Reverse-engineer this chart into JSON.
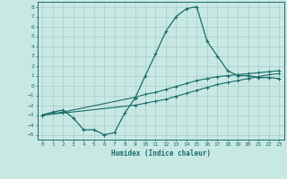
{
  "xlabel": "Humidex (Indice chaleur)",
  "xlim": [
    -0.5,
    23.5
  ],
  "ylim": [
    -5.5,
    8.5
  ],
  "xticks": [
    0,
    1,
    2,
    3,
    4,
    5,
    6,
    7,
    8,
    9,
    10,
    11,
    12,
    13,
    14,
    15,
    16,
    17,
    18,
    19,
    20,
    21,
    22,
    23
  ],
  "yticks": [
    -5,
    -4,
    -3,
    -2,
    -1,
    0,
    1,
    2,
    3,
    4,
    5,
    6,
    7,
    8
  ],
  "bg_color": "#c8e8e4",
  "grid_color": "#a8ccc8",
  "line_color": "#1a6b6b",
  "line1_x": [
    0,
    1,
    2,
    3,
    4,
    5,
    6,
    7,
    8,
    9,
    10,
    11,
    12,
    13,
    14,
    15,
    16,
    17,
    18,
    19,
    20,
    21,
    22,
    23
  ],
  "line1_y": [
    -3,
    -2.7,
    -2.5,
    -3.3,
    -4.5,
    -4.5,
    -5,
    -4.8,
    -2.8,
    -1.3,
    1.0,
    3.2,
    5.5,
    7.0,
    7.8,
    8.0,
    4.5,
    3.0,
    1.5,
    1.0,
    1.0,
    0.8,
    0.8,
    0.7
  ],
  "line2_x": [
    0,
    2,
    9,
    10,
    11,
    12,
    13,
    14,
    15,
    16,
    17,
    18,
    19,
    20,
    21,
    22,
    23
  ],
  "line2_y": [
    -3,
    -2.7,
    -1.2,
    -0.9,
    -0.7,
    -0.4,
    -0.1,
    0.2,
    0.5,
    0.7,
    0.9,
    1.0,
    1.1,
    1.2,
    1.3,
    1.4,
    1.5
  ],
  "line3_x": [
    0,
    2,
    9,
    10,
    11,
    12,
    13,
    14,
    15,
    16,
    17,
    18,
    19,
    20,
    21,
    22,
    23
  ],
  "line3_y": [
    -3,
    -2.8,
    -2.0,
    -1.8,
    -1.6,
    -1.4,
    -1.1,
    -0.8,
    -0.5,
    -0.2,
    0.1,
    0.3,
    0.5,
    0.7,
    0.9,
    1.1,
    1.2
  ]
}
